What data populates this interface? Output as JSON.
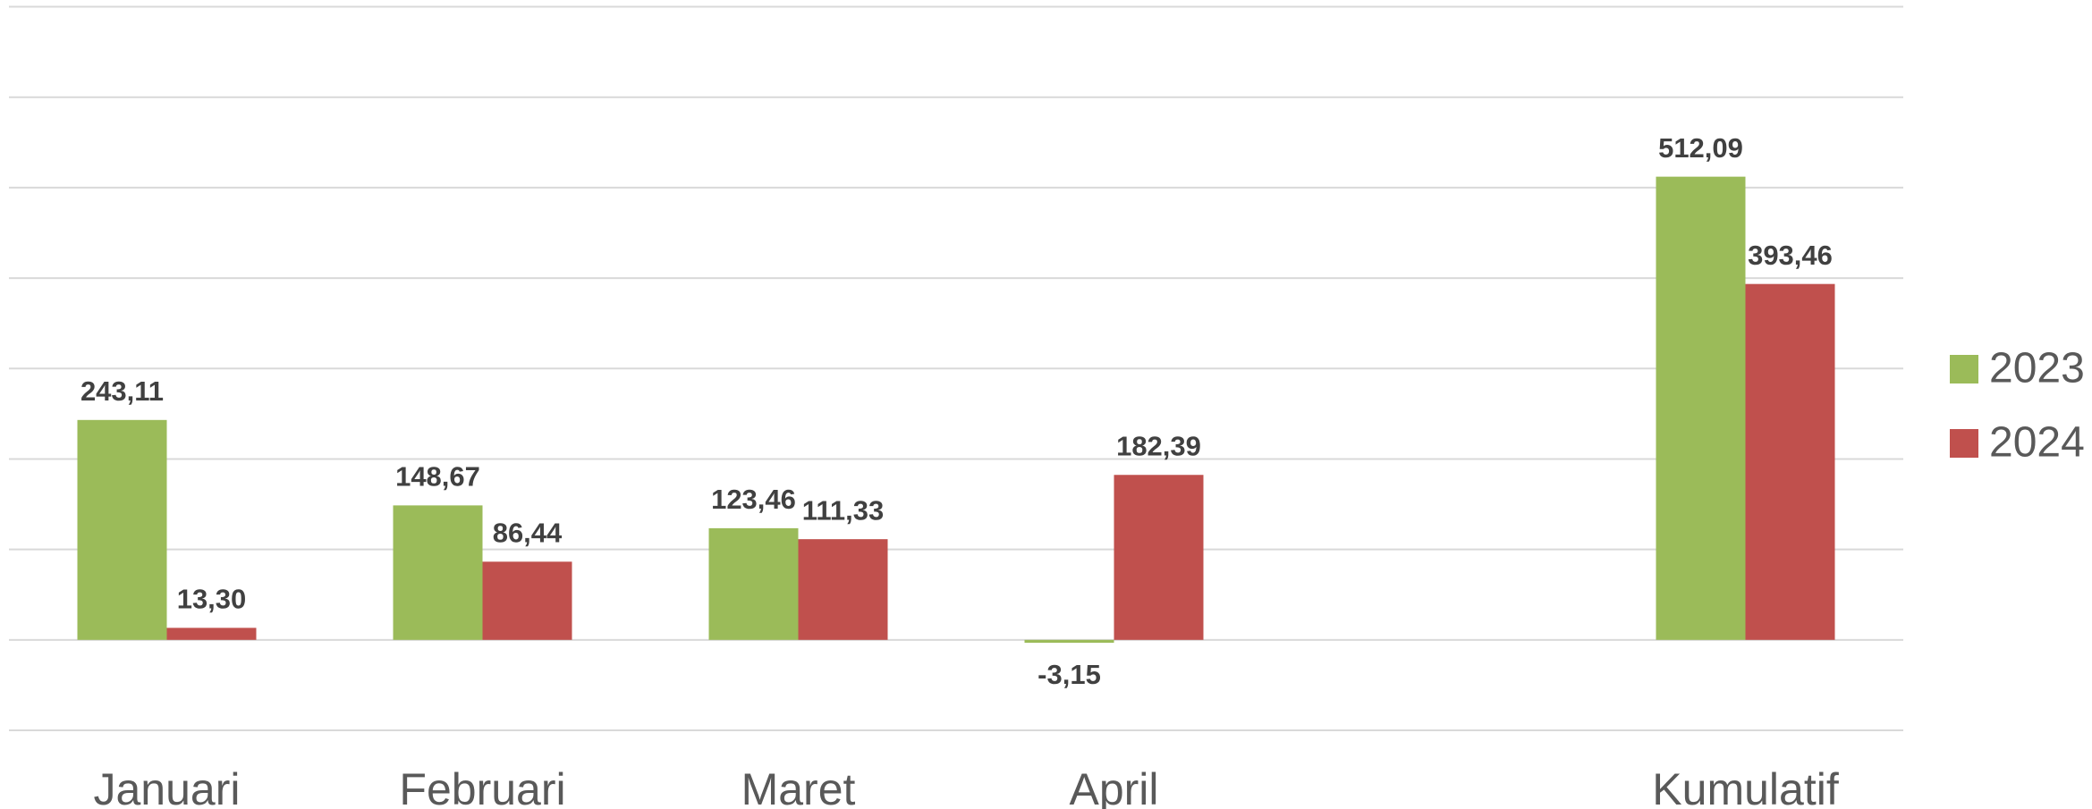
{
  "chart_data": {
    "type": "bar",
    "categories": [
      "Januari",
      "Februari",
      "Maret",
      "April",
      null,
      "Kumulatif"
    ],
    "series": [
      {
        "name": "2023",
        "color": "#9bbb59",
        "values": [
          243.11,
          148.67,
          123.46,
          -3.15,
          null,
          512.09
        ],
        "value_labels": [
          "243,11",
          "148,67",
          "123,46",
          "-3,15",
          null,
          "512,09"
        ]
      },
      {
        "name": "2024",
        "color": "#c0504d",
        "values": [
          13.3,
          86.44,
          111.33,
          182.39,
          null,
          393.46
        ],
        "value_labels": [
          "13,30",
          "86,44",
          "111,33",
          "182,39",
          null,
          "393,46"
        ]
      }
    ],
    "ylim": [
      -100,
      700
    ],
    "yticks": [
      -100,
      0,
      100,
      200,
      300,
      400,
      500,
      600,
      700
    ],
    "grid": true,
    "legend": "right"
  }
}
